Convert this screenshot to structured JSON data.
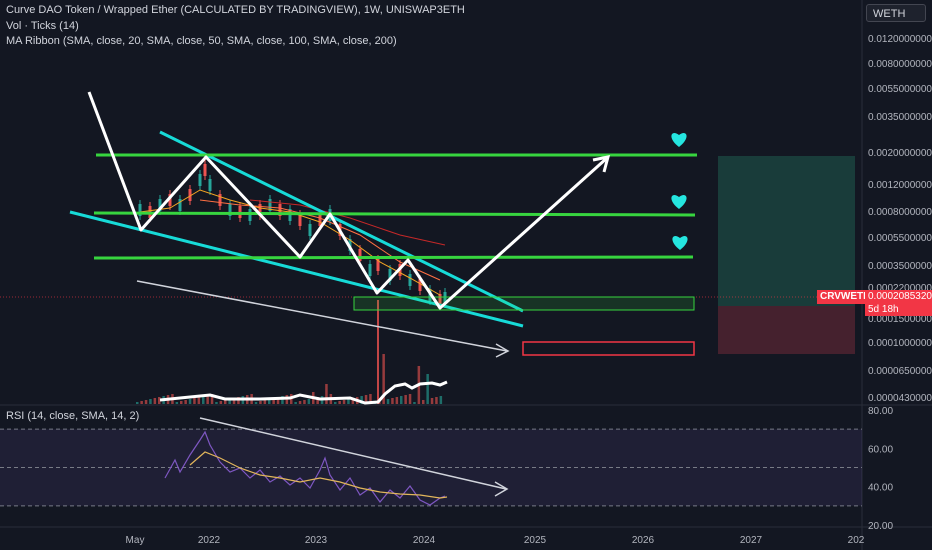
{
  "header": {
    "title": "Curve DAO Token / Wrapped Ether (CALCULATED BY TRADINGVIEW), 1W, UNISWAP3ETH",
    "vol": "Vol · Ticks (14)",
    "ma": "MA Ribbon (SMA, close, 20, SMA, close, 50, SMA, close, 100, SMA, close, 200)",
    "currency_badge": "WETH"
  },
  "price_marker": {
    "symbol": "CRVWETH",
    "price": "0.0002085320",
    "countdown": "5d 18h"
  },
  "rsi": {
    "label": "RSI (14, close, SMA, 14, 2)"
  },
  "colors": {
    "background": "#131722",
    "green_levels": "#37d53f",
    "cyan_channel": "#17dbd8",
    "white_path": "#ffffff",
    "rsi_line": "#7e57c2",
    "rsi_ma": "#e2b65b",
    "target_zone": "#1d4d45",
    "stop_zone": "#4f2330",
    "price_tag": "#f23645",
    "hearts": "#25e6e0"
  },
  "icons": [
    "heart-icon",
    "heart-icon",
    "heart-icon"
  ],
  "chart_data": [
    {
      "type": "line",
      "scale": "log",
      "y_axis_labels": [
        "0.0120000000",
        "0.0080000000",
        "0.0055000000",
        "0.0035000000",
        "0.0020000000",
        "0.0012000000",
        "0.0008000000",
        "0.0005500000",
        "0.0003500000",
        "0.0002200000",
        "0.0001500000",
        "0.0001000000",
        "0.0000650000",
        "0.0000430000"
      ],
      "x_axis_labels": [
        "May",
        "2022",
        "2023",
        "2024",
        "2025",
        "2026",
        "2027",
        "202"
      ],
      "horizontal_levels": [
        0.002,
        0.0008,
        0.00036
      ],
      "current_price": 0.000208532
    },
    {
      "type": "line",
      "title": "RSI (14, close, SMA, 14, 2)",
      "ylim": [
        20,
        80
      ],
      "y_axis_labels": [
        "80.00",
        "60.00",
        "40.00",
        "20.00"
      ],
      "bands": [
        70,
        50,
        30
      ]
    }
  ]
}
